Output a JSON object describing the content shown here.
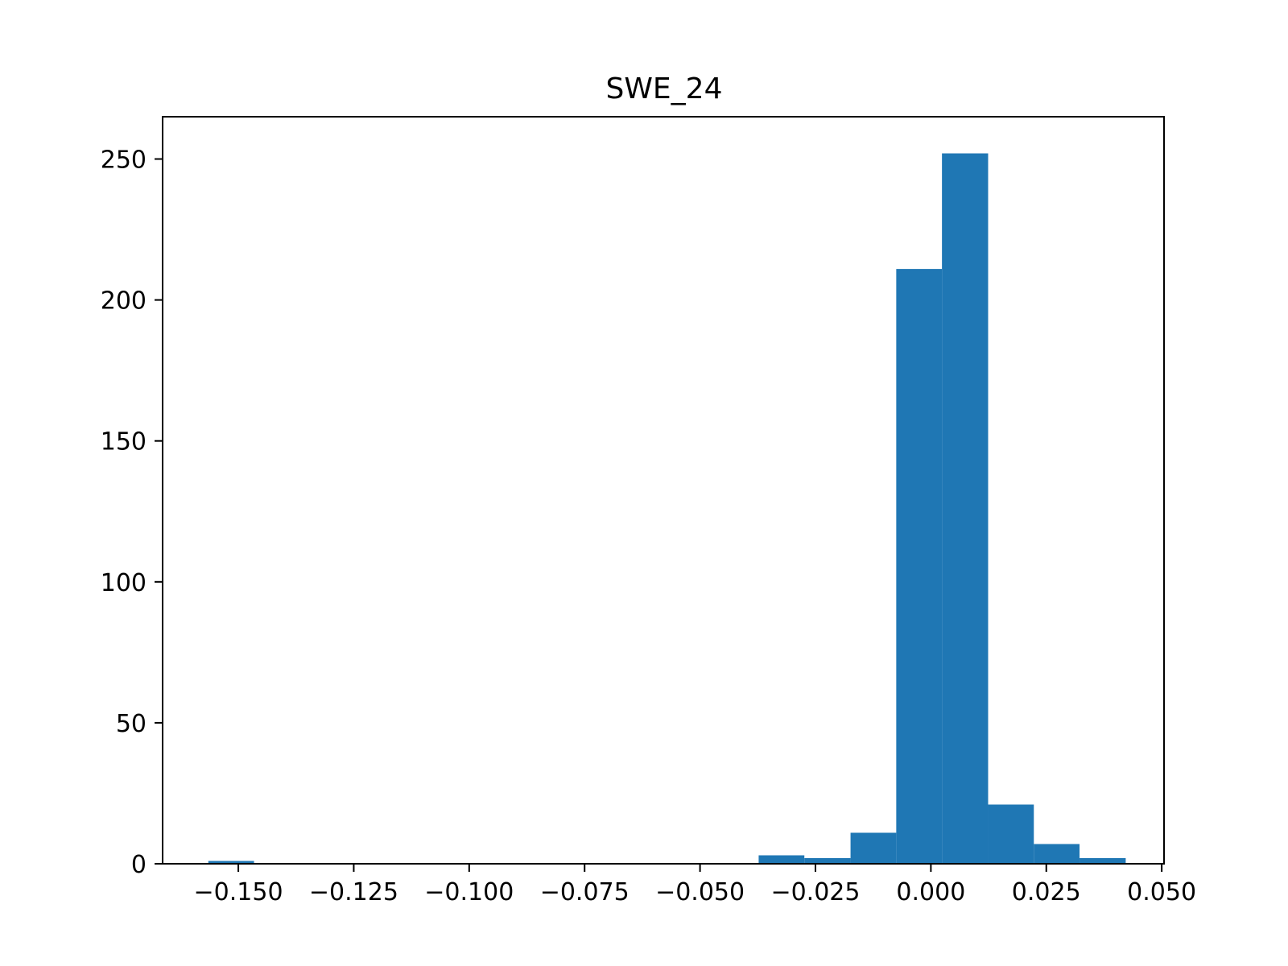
{
  "chart_data": {
    "type": "bar",
    "title": "SWE_24",
    "xlabel": "",
    "ylabel": "",
    "xlim": [
      -0.1664,
      0.0505
    ],
    "ylim": [
      0,
      265
    ],
    "xticks": [
      -0.15,
      -0.125,
      -0.1,
      -0.075,
      -0.05,
      -0.025,
      0.0,
      0.025,
      0.05
    ],
    "xtick_labels": [
      "−0.150",
      "−0.125",
      "−0.100",
      "−0.075",
      "−0.050",
      "−0.025",
      "0.000",
      "0.025",
      "0.050"
    ],
    "yticks": [
      0,
      50,
      100,
      150,
      200,
      250
    ],
    "ytick_labels": [
      "0",
      "50",
      "100",
      "150",
      "200",
      "250"
    ],
    "bin_edges": [
      -0.1565,
      -0.1466,
      -0.1366,
      -0.1267,
      -0.1168,
      -0.1068,
      -0.0969,
      -0.087,
      -0.077,
      -0.0671,
      -0.0572,
      -0.0472,
      -0.0373,
      -0.0274,
      -0.0174,
      -0.0075,
      0.0024,
      0.0124,
      0.0223,
      0.0322,
      0.0422
    ],
    "counts": [
      1,
      0,
      0,
      0,
      0,
      0,
      0,
      0,
      0,
      0,
      0,
      0,
      3,
      2,
      11,
      211,
      252,
      21,
      7,
      2
    ],
    "grid": false,
    "colors": {
      "bar": "#1f77b4",
      "axes": "#000000",
      "background": "#ffffff"
    }
  }
}
